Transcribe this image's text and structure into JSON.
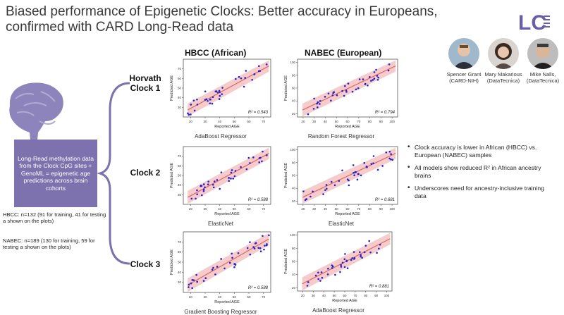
{
  "slide": {
    "title_line1": "Biased performance of Epigenetic Clocks: Better accuracy in Europeans,",
    "title_line2": "confirmed with CARD Long-Read data",
    "logo_text": "LC"
  },
  "people": [
    {
      "name": "Spencer Grant",
      "affiliation": "(CARD-NIH)"
    },
    {
      "name": "Mary Makarious",
      "affiliation": "(DataTecnica)"
    },
    {
      "name": "Mike Nalls,",
      "affiliation": "(DataTecnica)"
    }
  ],
  "columns": {
    "hbcc": "HBCC (African)",
    "nabec": "NABEC (European)"
  },
  "clocks": [
    {
      "line1": "Horvath",
      "line2": "Clock 1"
    },
    {
      "line1": "Clock 2",
      "line2": ""
    },
    {
      "line1": "Clock 3",
      "line2": ""
    }
  ],
  "callout": "Long-Read methylation data from the Clock CpG sites + GenoML = epigenetic age predictions across brain cohorts",
  "notes": {
    "hbcc": "HBCC: n=132 (91 for training, 41 for testing a shown on the plots)",
    "nabec": "NABEC: n=189 (130 for training, 59 for testing a shown on the plots)"
  },
  "bullets": [
    "Clock accuracy is lower in African (HBCC) vs. European (NABEC) samples",
    "All models show reduced R² in African ancestry brains",
    "Underscores need for ancestry-inclusive training data"
  ],
  "colors": {
    "accent": "#7d72ad",
    "points": "#2222cc",
    "fit": "#e06666",
    "band": "#f4c2c2"
  },
  "chart_data": [
    {
      "type": "scatter",
      "cohort": "HBCC",
      "model": "AdaBoost Regressor",
      "xlabel": "Reported AGE",
      "ylabel": "Predicted AGE",
      "r2_label": "R² = 0.543",
      "xticks": [
        "20",
        "30",
        "40",
        "50",
        "60",
        "70"
      ],
      "yticks": [
        "30",
        "40",
        "50",
        "60",
        "70"
      ],
      "xlim": [
        15,
        75
      ],
      "ylim": [
        20,
        80
      ]
    },
    {
      "type": "scatter",
      "cohort": "NABEC",
      "model": "Random Forest Regressor",
      "xlabel": "Reported AGE",
      "ylabel": "Predicted AGE",
      "r2_label": "R² = 0.794",
      "xticks": [
        "20",
        "30",
        "40",
        "50",
        "60",
        "70",
        "80",
        "90",
        "100"
      ],
      "yticks": [
        "20",
        "40",
        "60",
        "80",
        "100"
      ],
      "xlim": [
        15,
        105
      ],
      "ylim": [
        15,
        105
      ]
    },
    {
      "type": "scatter",
      "cohort": "HBCC",
      "model": "ElasticNet",
      "xlabel": "Reported AGE",
      "ylabel": "Predicted AGE",
      "r2_label": "R² = 0.588",
      "xticks": [
        "20",
        "30",
        "40",
        "50",
        "60",
        "70"
      ],
      "yticks": [
        "30",
        "40",
        "50",
        "60",
        "70"
      ],
      "xlim": [
        15,
        75
      ],
      "ylim": [
        20,
        80
      ]
    },
    {
      "type": "scatter",
      "cohort": "NABEC",
      "model": "ElasticNet",
      "xlabel": "Reported AGE",
      "ylabel": "Predicted AGE",
      "r2_label": "R² = 0.681",
      "xticks": [
        "20",
        "30",
        "40",
        "50",
        "60",
        "70",
        "80",
        "90",
        "100"
      ],
      "yticks": [
        "20",
        "40",
        "60",
        "80",
        "100"
      ],
      "xlim": [
        15,
        105
      ],
      "ylim": [
        15,
        105
      ]
    },
    {
      "type": "scatter",
      "cohort": "HBCC",
      "model": "Gradient Boosting Regressor",
      "xlabel": "Reported AGE",
      "ylabel": "Predicted AGE",
      "r2_label": "R² = 0.588",
      "xticks": [
        "20",
        "30",
        "40",
        "50",
        "60",
        "70"
      ],
      "yticks": [
        "30",
        "40",
        "50",
        "60",
        "70"
      ],
      "xlim": [
        15,
        75
      ],
      "ylim": [
        20,
        80
      ]
    },
    {
      "type": "scatter",
      "cohort": "NABEC",
      "model": "AdaBoost Regressor",
      "xlabel": "Reported AGE",
      "ylabel": "Predicted AGE",
      "r2_label": "R² = 0.881",
      "xticks": [
        "20",
        "30",
        "40",
        "50",
        "60",
        "70",
        "80",
        "90",
        "100"
      ],
      "yticks": [
        "20",
        "40",
        "60",
        "80",
        "100"
      ],
      "xlim": [
        15,
        105
      ],
      "ylim": [
        15,
        105
      ]
    }
  ]
}
